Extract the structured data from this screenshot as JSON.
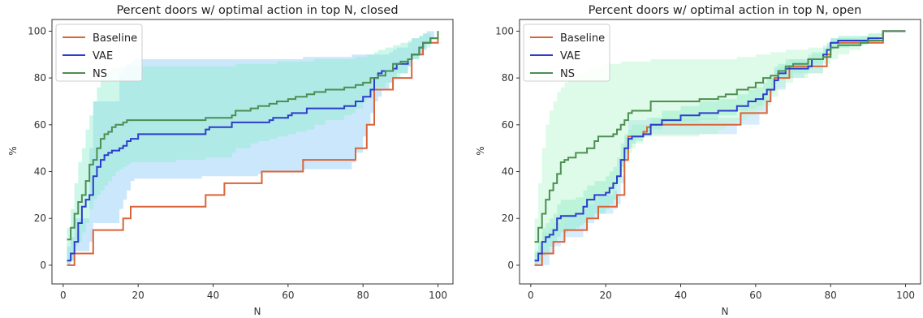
{
  "chart_data": [
    {
      "type": "line",
      "title": "Percent doors w/ optimal action in top N, closed",
      "xlabel": "N",
      "ylabel": "%",
      "xlim": [
        -3,
        104
      ],
      "ylim": [
        -8,
        105
      ],
      "xticks": [
        0,
        20,
        40,
        60,
        80,
        100
      ],
      "yticks": [
        0,
        20,
        40,
        60,
        80,
        100
      ],
      "grid": false,
      "legend_position": "top-left",
      "series": [
        {
          "name": "Baseline",
          "color": "#d9643a",
          "x": [
            1,
            2,
            3,
            7,
            8,
            15,
            16,
            17,
            18,
            19,
            37,
            38,
            42,
            43,
            52,
            53,
            63,
            64,
            77,
            78,
            80,
            81,
            82,
            83,
            84,
            85,
            87,
            88,
            89,
            92,
            93,
            95,
            96,
            97,
            98,
            99,
            100
          ],
          "y": [
            0,
            0,
            5,
            5,
            15,
            15,
            20,
            20,
            25,
            25,
            25,
            30,
            30,
            35,
            35,
            40,
            40,
            45,
            45,
            50,
            50,
            60,
            60,
            75,
            75,
            75,
            75,
            80,
            80,
            80,
            90,
            90,
            95,
            95,
            95,
            95,
            100
          ],
          "band": {
            "color": "#8ccaf7",
            "opacity": 0.45,
            "lower": [
              0,
              0,
              2,
              6,
              10,
              18,
              24,
              28,
              32,
              36,
              37,
              38,
              38,
              38,
              38,
              39,
              40,
              40,
              41,
              44,
              48,
              55,
              60,
              65,
              70,
              72,
              75,
              78,
              80,
              82,
              85,
              88,
              90,
              92,
              95,
              97,
              100
            ],
            "upper": [
              8,
              12,
              20,
              50,
              70,
              82,
              84,
              86,
              87,
              88,
              88,
              88,
              88,
              88,
              88,
              88,
              88,
              89,
              90,
              90,
              90,
              90,
              90,
              90,
              90,
              90,
              91,
              92,
              93,
              95,
              97,
              98,
              99,
              100,
              100,
              100,
              100
            ]
          }
        },
        {
          "name": "VAE",
          "color": "#2c3ccc",
          "x": [
            1,
            2,
            3,
            4,
            5,
            6,
            7,
            8,
            9,
            10,
            11,
            12,
            13,
            14,
            15,
            16,
            17,
            18,
            19,
            20,
            25,
            30,
            38,
            39,
            45,
            50,
            55,
            56,
            60,
            61,
            65,
            70,
            75,
            78,
            80,
            81,
            82,
            83,
            84,
            85,
            86,
            88,
            89,
            90,
            92,
            93,
            95,
            96,
            98,
            100
          ],
          "y": [
            2,
            5,
            10,
            18,
            25,
            28,
            30,
            38,
            42,
            45,
            47,
            48,
            49,
            49,
            50,
            51,
            53,
            54,
            54,
            56,
            56,
            56,
            58,
            59,
            61,
            61,
            62,
            63,
            64,
            65,
            67,
            67,
            68,
            70,
            72,
            72,
            75,
            80,
            82,
            83,
            83,
            84,
            86,
            86,
            88,
            90,
            93,
            95,
            97,
            100
          ]
        },
        {
          "name": "NS",
          "color": "#4d8e53",
          "x": [
            1,
            2,
            3,
            4,
            5,
            6,
            7,
            8,
            9,
            10,
            11,
            12,
            13,
            14,
            15,
            16,
            17,
            18,
            20,
            25,
            30,
            37,
            38,
            45,
            46,
            50,
            52,
            55,
            57,
            60,
            62,
            65,
            67,
            70,
            75,
            77,
            78,
            80,
            81,
            82,
            83,
            84,
            86,
            88,
            90,
            92,
            93,
            95,
            96,
            98,
            100
          ],
          "y": [
            11,
            16,
            22,
            27,
            30,
            36,
            43,
            45,
            50,
            54,
            56,
            57,
            59,
            60,
            60,
            61,
            62,
            62,
            62,
            62,
            62,
            62,
            63,
            64,
            66,
            67,
            68,
            69,
            70,
            71,
            72,
            73,
            74,
            75,
            76,
            76,
            77,
            78,
            78,
            80,
            80,
            81,
            83,
            86,
            87,
            88,
            90,
            93,
            95,
            97,
            100
          ],
          "band": {
            "color": "#8eedcf",
            "opacity": 0.45,
            "lower": [
              0,
              0,
              2,
              8,
              10,
              14,
              18,
              24,
              28,
              30,
              32,
              34,
              36,
              38,
              40,
              41,
              42,
              43,
              44,
              44,
              44,
              45,
              45,
              46,
              48,
              50,
              52,
              53,
              54,
              55,
              56,
              57,
              58,
              60,
              62,
              64,
              65,
              67,
              70,
              72,
              74,
              75,
              76,
              78,
              80,
              82,
              85,
              88,
              90,
              93,
              100
            ],
            "upper": [
              16,
              24,
              35,
              44,
              50,
              58,
              64,
              70,
              76,
              80,
              82,
              83,
              84,
              84,
              85,
              85,
              85,
              85,
              85,
              85,
              85,
              85,
              85,
              85,
              86,
              86,
              86,
              86,
              87,
              87,
              87,
              87,
              88,
              88,
              88,
              88,
              89,
              89,
              90,
              90,
              91,
              92,
              93,
              94,
              95,
              96,
              97,
              98,
              99,
              100,
              100
            ]
          }
        }
      ]
    },
    {
      "type": "line",
      "title": "Percent doors w/ optimal action in top N, open",
      "xlabel": "N",
      "ylabel": "%",
      "xlim": [
        -3,
        104
      ],
      "ylim": [
        -8,
        105
      ],
      "xticks": [
        0,
        20,
        40,
        60,
        80,
        100
      ],
      "yticks": [
        0,
        20,
        40,
        60,
        80,
        100
      ],
      "grid": false,
      "legend_position": "top-left",
      "series": [
        {
          "name": "Baseline",
          "color": "#d9643a",
          "x": [
            1,
            2,
            3,
            5,
            6,
            8,
            9,
            14,
            15,
            17,
            18,
            22,
            23,
            24,
            25,
            26,
            27,
            28,
            29,
            30,
            31,
            32,
            55,
            56,
            60,
            61,
            63,
            64,
            65,
            66,
            68,
            69,
            73,
            74,
            78,
            79,
            80,
            81,
            88,
            89,
            93,
            94,
            100
          ],
          "y": [
            0,
            0,
            5,
            5,
            10,
            10,
            15,
            15,
            20,
            20,
            25,
            25,
            30,
            30,
            45,
            55,
            55,
            55,
            55,
            57,
            59,
            60,
            60,
            65,
            65,
            65,
            70,
            75,
            80,
            80,
            80,
            85,
            85,
            85,
            85,
            90,
            95,
            95,
            95,
            95,
            95,
            100,
            100
          ],
          "band": {
            "color": "#8ccaf7",
            "opacity": 0.35,
            "lower": [
              0,
              0,
              0,
              0,
              5,
              8,
              10,
              12,
              15,
              18,
              20,
              22,
              24,
              26,
              35,
              45,
              50,
              52,
              54,
              55,
              56,
              57,
              56,
              60,
              60,
              60,
              65,
              70,
              75,
              75,
              75,
              80,
              80,
              82,
              82,
              88,
              92,
              92,
              94,
              94,
              95,
              98,
              100
            ],
            "upper": [
              5,
              8,
              14,
              16,
              18,
              20,
              22,
              24,
              26,
              28,
              30,
              32,
              35,
              38,
              55,
              62,
              62,
              62,
              62,
              62,
              63,
              63,
              63,
              68,
              70,
              72,
              76,
              80,
              85,
              85,
              86,
              88,
              88,
              90,
              92,
              94,
              97,
              97,
              97,
              97,
              98,
              100,
              100
            ]
          }
        },
        {
          "name": "VAE",
          "color": "#2c3ccc",
          "x": [
            1,
            2,
            3,
            4,
            5,
            6,
            7,
            8,
            10,
            12,
            13,
            14,
            15,
            17,
            20,
            21,
            22,
            23,
            24,
            25,
            26,
            27,
            28,
            30,
            32,
            35,
            40,
            45,
            50,
            55,
            58,
            60,
            62,
            63,
            65,
            66,
            68,
            70,
            74,
            75,
            78,
            79,
            80,
            82,
            85,
            88,
            90,
            93,
            94,
            100
          ],
          "y": [
            2,
            5,
            10,
            12,
            13,
            15,
            20,
            21,
            21,
            22,
            22,
            25,
            28,
            30,
            31,
            33,
            35,
            38,
            45,
            50,
            54,
            55,
            55,
            56,
            60,
            62,
            64,
            65,
            66,
            68,
            70,
            71,
            73,
            75,
            79,
            82,
            84,
            84,
            85,
            88,
            90,
            92,
            95,
            96,
            96,
            96,
            97,
            97,
            100,
            100
          ],
          "band": {
            "color": "#8eedcf",
            "opacity": 0.55,
            "lower": [
              0,
              0,
              2,
              4,
              5,
              8,
              10,
              12,
              14,
              15,
              16,
              17,
              18,
              20,
              22,
              24,
              26,
              28,
              35,
              42,
              48,
              50,
              52,
              53,
              55,
              58,
              60,
              61,
              62,
              64,
              66,
              67,
              68,
              70,
              74,
              78,
              80,
              80,
              82,
              84,
              86,
              88,
              92,
              93,
              93,
              94,
              95,
              96,
              98,
              100
            ],
            "upper": [
              6,
              10,
              16,
              18,
              20,
              22,
              26,
              28,
              28,
              29,
              29,
              32,
              34,
              36,
              38,
              40,
              42,
              46,
              52,
              56,
              58,
              60,
              60,
              60,
              63,
              66,
              68,
              70,
              71,
              73,
              75,
              76,
              78,
              80,
              84,
              86,
              88,
              88,
              89,
              91,
              93,
              95,
              97,
              98,
              98,
              98,
              99,
              99,
              100,
              100
            ]
          }
        },
        {
          "name": "NS",
          "color": "#4d8e53",
          "x": [
            1,
            2,
            3,
            4,
            5,
            6,
            7,
            8,
            9,
            10,
            12,
            14,
            15,
            17,
            18,
            20,
            22,
            23,
            24,
            25,
            26,
            27,
            28,
            30,
            32,
            35,
            40,
            45,
            50,
            52,
            55,
            58,
            60,
            62,
            64,
            66,
            68,
            70,
            74,
            78,
            80,
            82,
            85,
            88,
            90,
            93,
            94,
            100
          ],
          "y": [
            10,
            16,
            22,
            28,
            32,
            35,
            39,
            44,
            45,
            46,
            48,
            48,
            50,
            53,
            55,
            55,
            56,
            58,
            60,
            62,
            65,
            66,
            66,
            66,
            70,
            70,
            70,
            71,
            72,
            73,
            75,
            76,
            78,
            80,
            81,
            83,
            85,
            86,
            88,
            89,
            93,
            94,
            94,
            95,
            96,
            96,
            100,
            100
          ],
          "band": {
            "color": "#b5f3cc",
            "opacity": 0.45,
            "lower": [
              0,
              2,
              5,
              8,
              10,
              12,
              14,
              15,
              16,
              18,
              20,
              22,
              24,
              26,
              28,
              30,
              32,
              34,
              36,
              40,
              44,
              48,
              50,
              52,
              55,
              55,
              55,
              55,
              56,
              58,
              60,
              62,
              64,
              66,
              68,
              72,
              76,
              78,
              80,
              82,
              86,
              88,
              90,
              92,
              94,
              95,
              97,
              100
            ],
            "upper": [
              20,
              35,
              50,
              60,
              66,
              70,
              74,
              76,
              78,
              80,
              82,
              83,
              84,
              85,
              85,
              86,
              86,
              86,
              87,
              87,
              87,
              87,
              87,
              87,
              88,
              88,
              88,
              88,
              88,
              88,
              89,
              89,
              90,
              90,
              91,
              91,
              92,
              92,
              93,
              94,
              96,
              97,
              97,
              98,
              98,
              99,
              100,
              100
            ]
          }
        }
      ]
    }
  ]
}
